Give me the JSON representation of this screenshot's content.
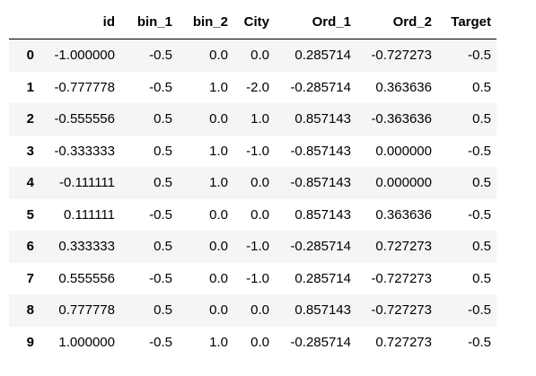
{
  "columns": [
    "",
    "id",
    "bin_1",
    "bin_2",
    "City",
    "Ord_1",
    "Ord_2",
    "Target"
  ],
  "rows": [
    {
      "index": "0",
      "id": "-1.000000",
      "bin_1": "-0.5",
      "bin_2": "0.0",
      "City": "0.0",
      "Ord_1": "0.285714",
      "Ord_2": "-0.727273",
      "Target": "-0.5"
    },
    {
      "index": "1",
      "id": "-0.777778",
      "bin_1": "-0.5",
      "bin_2": "1.0",
      "City": "-2.0",
      "Ord_1": "-0.285714",
      "Ord_2": "0.363636",
      "Target": "0.5"
    },
    {
      "index": "2",
      "id": "-0.555556",
      "bin_1": "0.5",
      "bin_2": "0.0",
      "City": "1.0",
      "Ord_1": "0.857143",
      "Ord_2": "-0.363636",
      "Target": "0.5"
    },
    {
      "index": "3",
      "id": "-0.333333",
      "bin_1": "0.5",
      "bin_2": "1.0",
      "City": "-1.0",
      "Ord_1": "-0.857143",
      "Ord_2": "0.000000",
      "Target": "-0.5"
    },
    {
      "index": "4",
      "id": "-0.111111",
      "bin_1": "0.5",
      "bin_2": "1.0",
      "City": "0.0",
      "Ord_1": "-0.857143",
      "Ord_2": "0.000000",
      "Target": "0.5"
    },
    {
      "index": "5",
      "id": "0.111111",
      "bin_1": "-0.5",
      "bin_2": "0.0",
      "City": "0.0",
      "Ord_1": "0.857143",
      "Ord_2": "0.363636",
      "Target": "-0.5"
    },
    {
      "index": "6",
      "id": "0.333333",
      "bin_1": "0.5",
      "bin_2": "0.0",
      "City": "-1.0",
      "Ord_1": "-0.285714",
      "Ord_2": "0.727273",
      "Target": "0.5"
    },
    {
      "index": "7",
      "id": "0.555556",
      "bin_1": "-0.5",
      "bin_2": "0.0",
      "City": "-1.0",
      "Ord_1": "0.285714",
      "Ord_2": "-0.727273",
      "Target": "0.5"
    },
    {
      "index": "8",
      "id": "0.777778",
      "bin_1": "0.5",
      "bin_2": "0.0",
      "City": "0.0",
      "Ord_1": "0.857143",
      "Ord_2": "-0.727273",
      "Target": "-0.5"
    },
    {
      "index": "9",
      "id": "1.000000",
      "bin_1": "-0.5",
      "bin_2": "1.0",
      "City": "0.0",
      "Ord_1": "-0.285714",
      "Ord_2": "0.727273",
      "Target": "-0.5"
    }
  ],
  "colors": {
    "striped_row": "#f5f5f5",
    "header_rule": "#000000",
    "text": "#000000"
  }
}
